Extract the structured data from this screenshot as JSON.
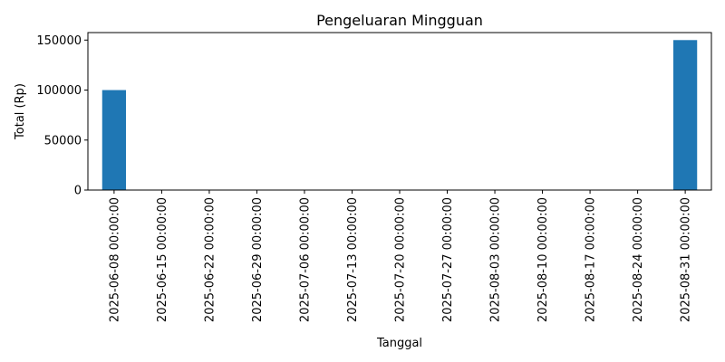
{
  "chart_data": {
    "type": "bar",
    "title": "Pengeluaran Mingguan",
    "xlabel": "Tanggal",
    "ylabel": "Total (Rp)",
    "categories": [
      "2025-06-08 00:00:00",
      "2025-06-15 00:00:00",
      "2025-06-22 00:00:00",
      "2025-06-29 00:00:00",
      "2025-07-06 00:00:00",
      "2025-07-13 00:00:00",
      "2025-07-20 00:00:00",
      "2025-07-27 00:00:00",
      "2025-08-03 00:00:00",
      "2025-08-10 00:00:00",
      "2025-08-17 00:00:00",
      "2025-08-24 00:00:00",
      "2025-08-31 00:00:00"
    ],
    "values": [
      100000,
      0,
      0,
      0,
      0,
      0,
      0,
      0,
      0,
      0,
      0,
      0,
      150000
    ],
    "yticks": [
      0,
      50000,
      100000,
      150000
    ],
    "ylim": [
      0,
      157500
    ],
    "grid": false,
    "bar_color": "#1f77b4"
  }
}
